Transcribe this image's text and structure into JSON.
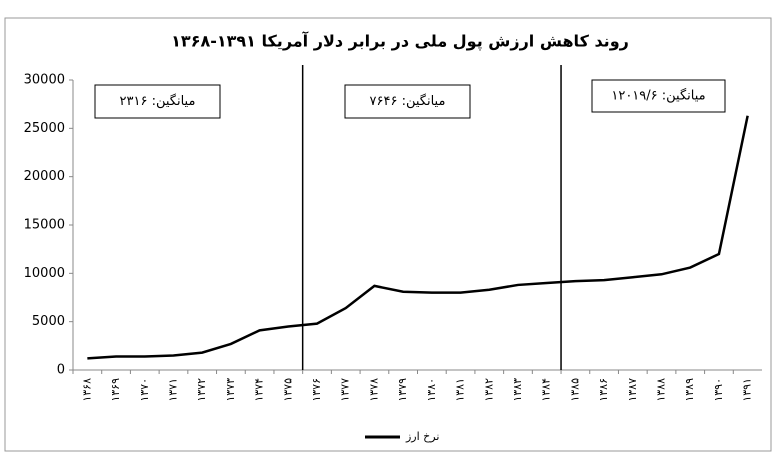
{
  "chart_data": {
    "type": "line",
    "title": "روند کاهش ارزش پول ملی در برابر دلار آمریکا ۱۳۹۱-۱۳۶۸",
    "categories": [
      "۱۳۶۸",
      "۱۳۶۹",
      "۱۳۷۰",
      "۱۳۷۱",
      "۱۳۷۲",
      "۱۳۷۳",
      "۱۳۷۴",
      "۱۳۷۵",
      "۱۳۷۶",
      "۱۳۷۷",
      "۱۳۷۸",
      "۱۳۷۹",
      "۱۳۸۰",
      "۱۳۸۱",
      "۱۳۸۲",
      "۱۳۸۳",
      "۱۳۸۴",
      "۱۳۸۵",
      "۱۳۸۶",
      "۱۳۸۷",
      "۱۳۸۸",
      "۱۳۸۹",
      "۱۳۹۰",
      "۱۳۹۱"
    ],
    "series": [
      {
        "name": "نرخ ارز",
        "color": "#000000",
        "values": [
          1200,
          1400,
          1400,
          1500,
          1800,
          2700,
          4100,
          4500,
          4800,
          6400,
          8700,
          8100,
          8000,
          8000,
          8300,
          8800,
          9000,
          9200,
          9300,
          9600,
          9900,
          10600,
          12000,
          26300
        ]
      }
    ],
    "annotations": [
      "میانگین: ۲۳۱۶",
      "میانگین: ۷۶۴۶",
      "میانگین: ۱۲۰۱۹/۶"
    ],
    "ylim": [
      0,
      30000
    ],
    "yticks": [
      0,
      5000,
      10000,
      15000,
      20000,
      25000,
      30000
    ],
    "legend": "bottom"
  }
}
